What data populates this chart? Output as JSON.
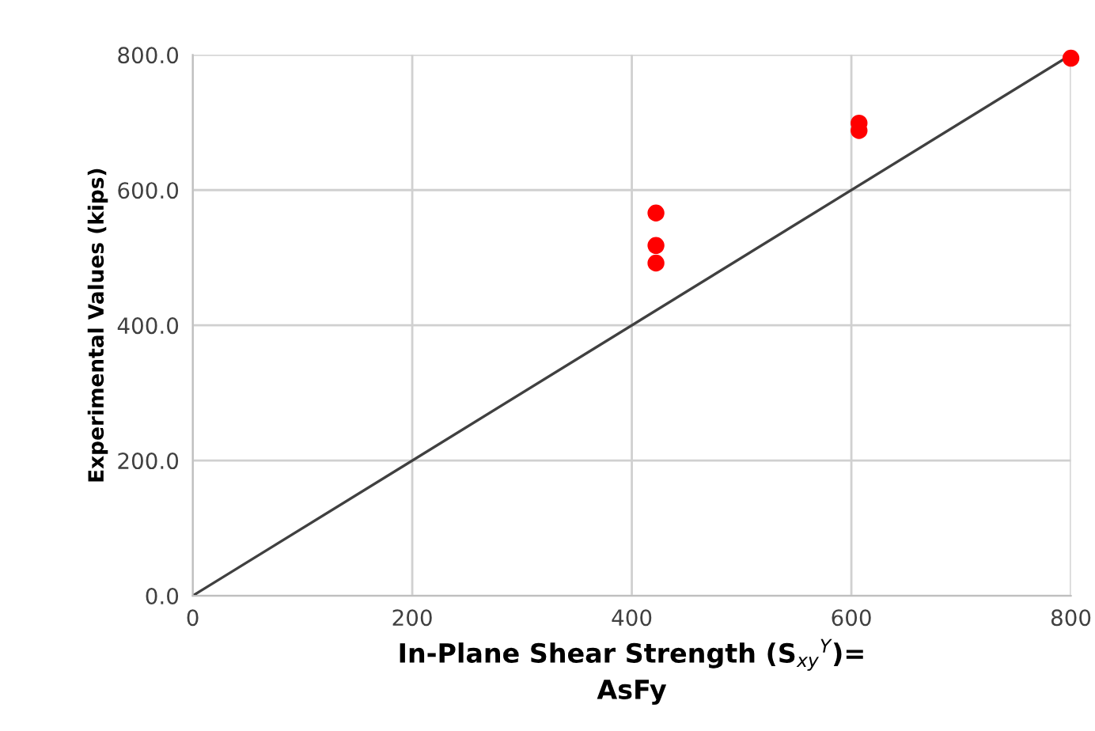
{
  "chart_data": {
    "type": "scatter",
    "xlabel": "In-Plane Shear Strength (S$_{xy}$$^{Y}$)=\nAsFy",
    "ylabel": "Experimental Values (kips)",
    "series": [
      {
        "color": "#ff0000",
        "marker": "circle",
        "x": [
          422,
          422,
          422,
          607,
          607,
          800
        ],
        "values": [
          492,
          518,
          566,
          688,
          699,
          795
        ]
      },
      {
        "type": "line",
        "color": "#404040",
        "marker": "none",
        "line_style": "solid",
        "x": [
          0,
          800
        ],
        "values": [
          0,
          800
        ]
      }
    ],
    "xlim": [
      0,
      800
    ],
    "xticks": [
      0,
      200,
      400,
      600,
      800
    ],
    "ylim": [
      0,
      800
    ],
    "yticks": [
      {
        "value": 0,
        "label": "0.0"
      },
      {
        "value": 200,
        "label": "200.0"
      },
      {
        "value": 400,
        "label": "400.0"
      },
      {
        "value": 600,
        "label": "600.0"
      },
      {
        "value": 800,
        "label": "800.0"
      }
    ],
    "grid": true,
    "legend": false
  }
}
